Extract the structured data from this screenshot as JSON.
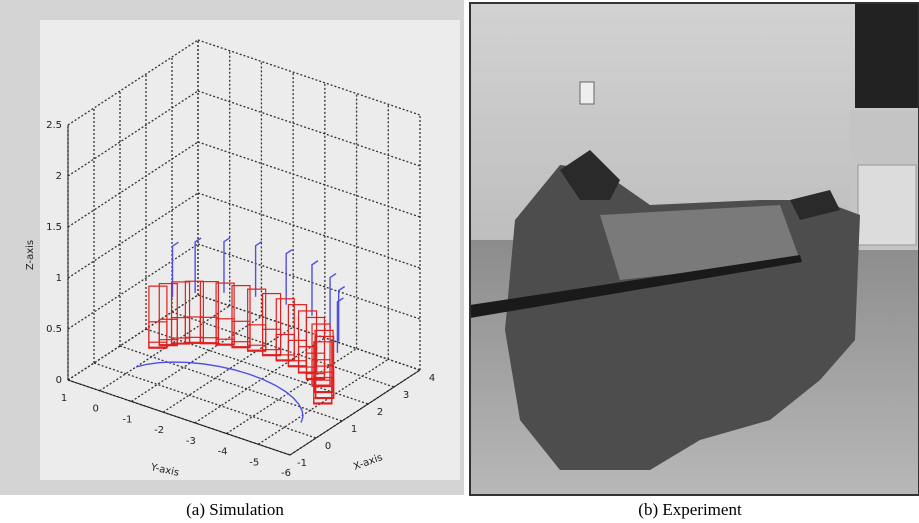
{
  "panels": [
    {
      "caption": "(a) Simulation",
      "plot": {
        "zlabel": "Z-axis",
        "ylabel": "Y-axis",
        "xlabel": "X-axis",
        "zticks": [
          0,
          0.5,
          1,
          1.5,
          2,
          2.5
        ],
        "yticks": [
          1,
          0,
          -1,
          -2,
          -3,
          -4,
          -5,
          -6
        ],
        "xticks": [
          -1,
          0,
          1,
          2,
          3,
          4
        ]
      }
    },
    {
      "caption": "(b) Experiment"
    }
  ]
}
